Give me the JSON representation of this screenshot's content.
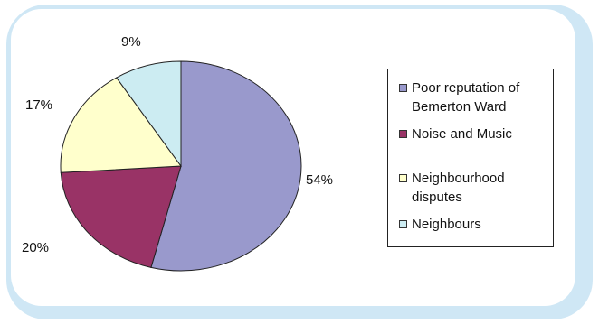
{
  "chart_data": {
    "type": "pie",
    "title": "",
    "slices": [
      {
        "label": "Poor reputation of Bemerton Ward",
        "value": 54,
        "display": "54%",
        "color": "#9999cc"
      },
      {
        "label": "Noise and Music",
        "value": 20,
        "display": "20%",
        "color": "#993366"
      },
      {
        "label": "Neighbourhood disputes",
        "value": 17,
        "display": "17%",
        "color": "#ffffcc"
      },
      {
        "label": "Neighbours",
        "value": 9,
        "display": "9%",
        "color": "#ccecf2"
      }
    ],
    "legend_position": "right",
    "legend": [
      "Poor reputation of\nBemerton Ward",
      "Noise and Music",
      "Neighbourhood\ndisputes",
      "Neighbours"
    ]
  }
}
